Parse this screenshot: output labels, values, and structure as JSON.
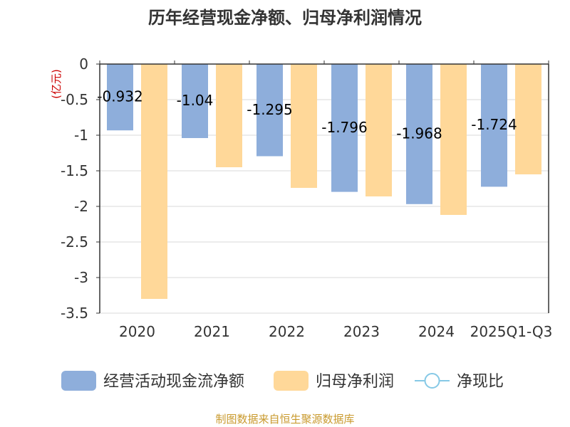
{
  "chart_data": {
    "type": "bar",
    "title": "历年经营现金净额、归母净利润情况",
    "ylabel": "(亿元)",
    "xlabel": "",
    "categories": [
      "2020",
      "2021",
      "2022",
      "2023",
      "2024",
      "2025Q1-Q3"
    ],
    "series": [
      {
        "name": "经营活动现金流净额",
        "color": "#8eaedb",
        "values": [
          -0.932,
          -1.04,
          -1.295,
          -1.796,
          -1.968,
          -1.724
        ],
        "data_labels": [
          "-0.932",
          "-1.04",
          "-1.295",
          "-1.796",
          "-1.968",
          "-1.724"
        ]
      },
      {
        "name": "归母净利润",
        "color": "#ffd899",
        "values": [
          -3.3,
          -1.45,
          -1.74,
          -1.86,
          -2.12,
          -1.55
        ]
      }
    ],
    "extra_legend": {
      "name": "净现比",
      "color": "#86c9e6",
      "marker": "line-circle"
    },
    "ylim": [
      -3.5,
      0
    ],
    "yticks": [
      "0",
      "-0.5",
      "-1",
      "-1.5",
      "-2",
      "-2.5",
      "-3",
      "-3.5"
    ],
    "ytick_values": [
      0,
      -0.5,
      -1,
      -1.5,
      -2,
      -2.5,
      -3,
      -3.5
    ],
    "grid": true,
    "legend_position": "bottom",
    "source": "制图数据来自恒生聚源数据库"
  }
}
